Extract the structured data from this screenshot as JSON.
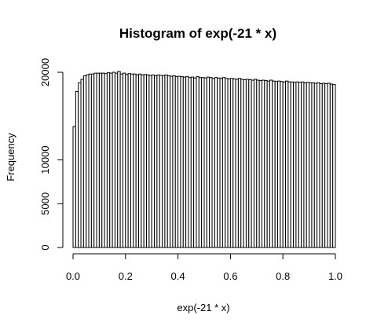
{
  "chart_data": {
    "type": "bar",
    "title": "Histogram of exp(-21 * x)",
    "xlabel": "exp(-21 * x)",
    "ylabel": "Frequency",
    "xlim": [
      0,
      1
    ],
    "ylim": [
      0,
      20000
    ],
    "bin_width": 0.01,
    "x_ticks": [
      0.0,
      0.2,
      0.4,
      0.6,
      0.8,
      1.0
    ],
    "x_tick_labels": [
      "0.0",
      "0.2",
      "0.4",
      "0.6",
      "0.8",
      "1.0"
    ],
    "y_ticks": [
      0,
      5000,
      10000,
      20000
    ],
    "y_tick_labels": [
      "0",
      "5000",
      "10000",
      "20000"
    ],
    "grid": false,
    "values": [
      13800,
      17800,
      18800,
      19200,
      19600,
      19700,
      19800,
      19800,
      19900,
      19900,
      19900,
      19900,
      19850,
      19950,
      19900,
      20000,
      19900,
      20100,
      19800,
      19900,
      19750,
      19850,
      19800,
      19800,
      19700,
      19800,
      19700,
      19750,
      19700,
      19650,
      19700,
      19600,
      19700,
      19650,
      19600,
      19700,
      19600,
      19550,
      19600,
      19500,
      19550,
      19500,
      19450,
      19500,
      19400,
      19450,
      19350,
      19500,
      19400,
      19400,
      19350,
      19450,
      19400,
      19300,
      19400,
      19350,
      19300,
      19400,
      19300,
      19250,
      19300,
      19250,
      19200,
      19300,
      19200,
      19150,
      19200,
      19150,
      19100,
      19200,
      19100,
      19050,
      19100,
      19050,
      19000,
      19100,
      19000,
      18950,
      19000,
      18950,
      18900,
      19000,
      18900,
      18900,
      18850,
      18900,
      18850,
      18900,
      18800,
      18850,
      18800,
      18800,
      18750,
      18800,
      18700,
      18750,
      18700,
      18750,
      18650,
      18600
    ]
  }
}
